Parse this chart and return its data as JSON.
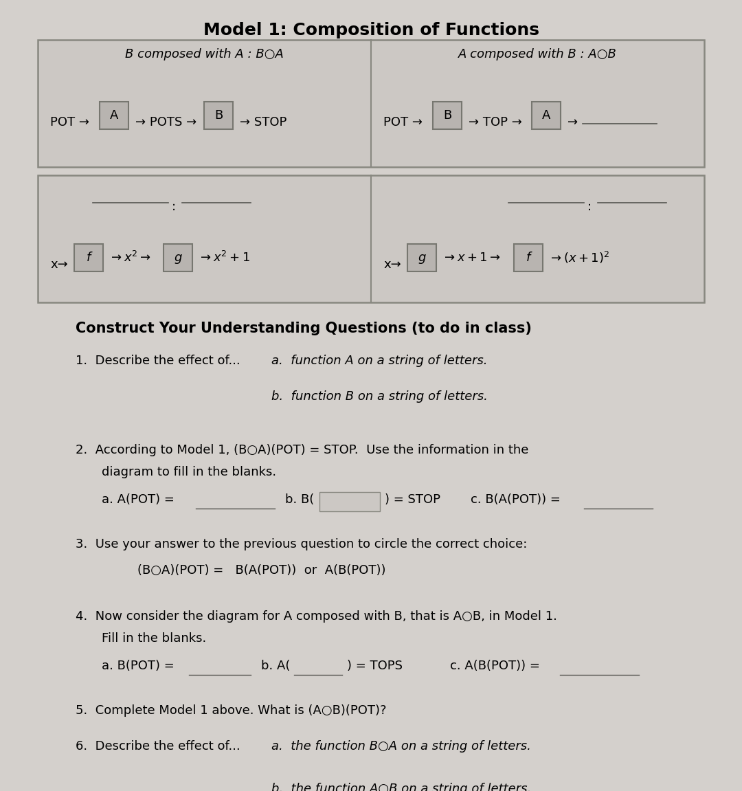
{
  "title": "Model 1: Composition of Functions",
  "bg_color": "#d4d0cc",
  "outer_box_bg": "#ccc8c4",
  "outer_box_border": "#888880",
  "func_box_bg": "#b8b4b0",
  "func_box_border": "#777770",
  "section1_header": "B composed with A : B○A",
  "section2_header": "A composed with B : A○B",
  "questions_header": "Construct Your Understanding Questions (to do in class)"
}
